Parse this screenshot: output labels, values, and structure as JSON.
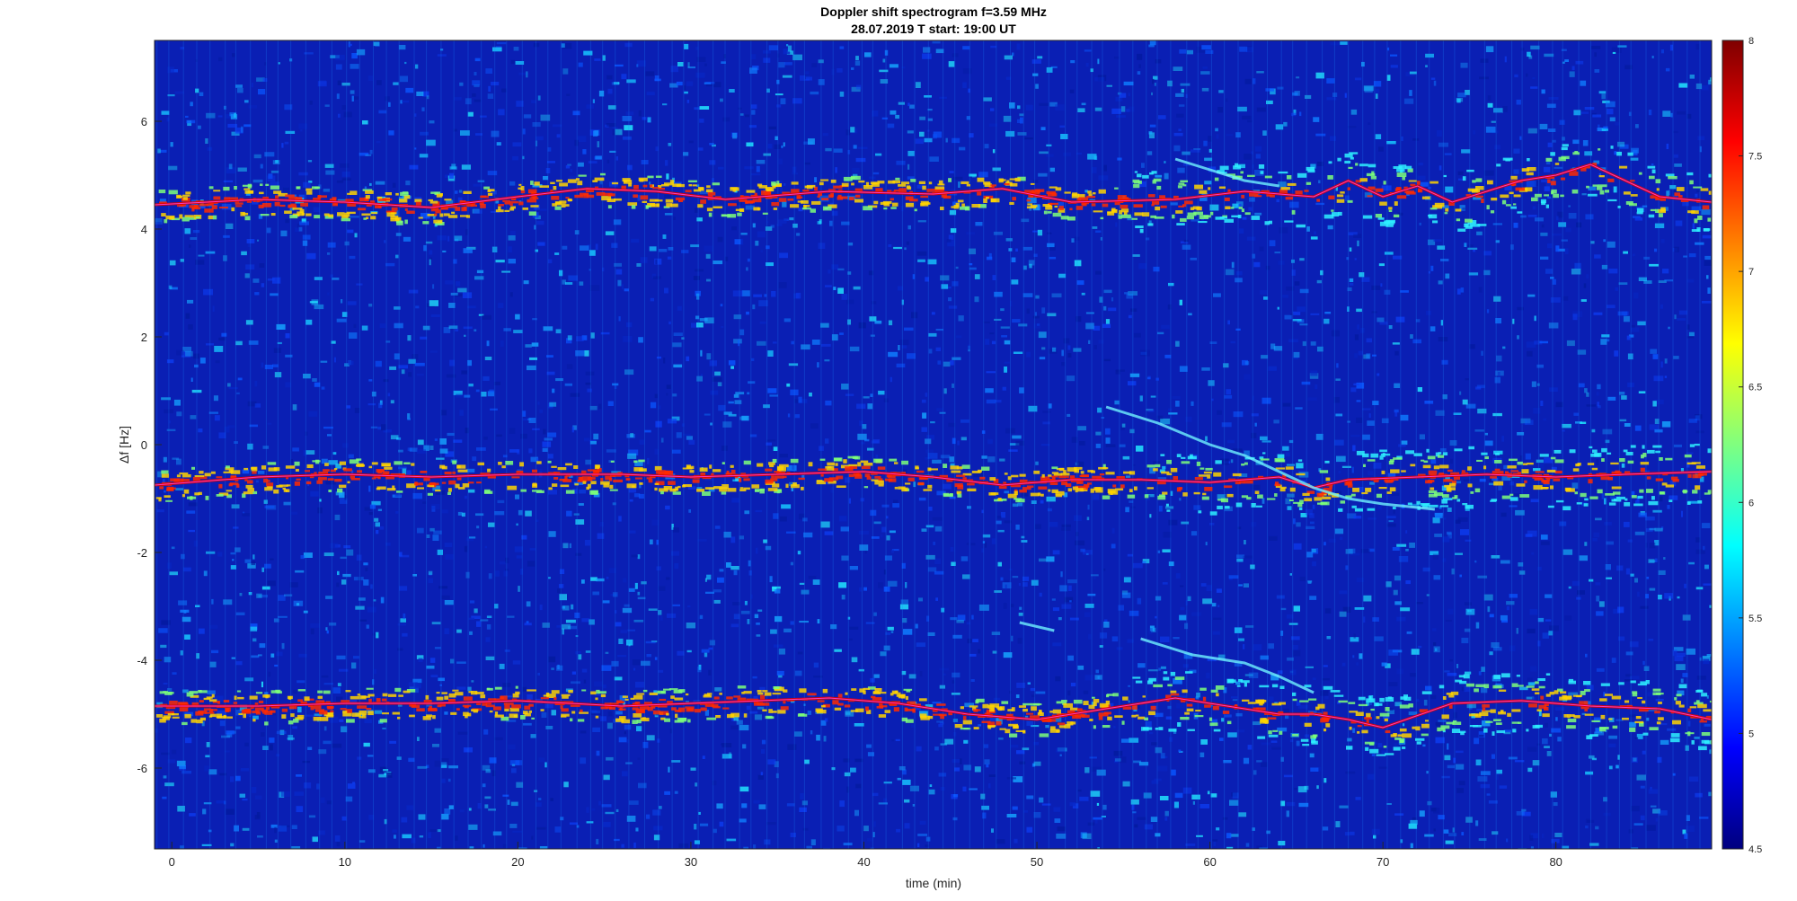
{
  "chart_data": {
    "type": "heatmap",
    "title": "Doppler shift spectrogram f=3.59 MHz",
    "subtitle": "28.07.2019    T start: 19:00 UT",
    "xlabel": "time (min)",
    "ylabel": "Δf [Hz]",
    "xlim": [
      -1,
      89
    ],
    "ylim": [
      -7.5,
      7.5
    ],
    "xticks": [
      0,
      10,
      20,
      30,
      40,
      50,
      60,
      70,
      80
    ],
    "yticks": [
      -6,
      -4,
      -2,
      0,
      2,
      4,
      6
    ],
    "colormap": "jet",
    "clim": [
      4.5,
      8
    ],
    "colorbar_ticks": [
      4.5,
      5,
      5.5,
      6,
      6.5,
      7,
      7.5,
      8
    ],
    "series": [
      {
        "x": [
          -1,
          5,
          10,
          15,
          20,
          24,
          28,
          32,
          38,
          44,
          48,
          52,
          58,
          62,
          66,
          68,
          70,
          72,
          74,
          76,
          78,
          80,
          82,
          84,
          86,
          89
        ],
        "y": [
          4.45,
          4.55,
          4.5,
          4.4,
          4.6,
          4.75,
          4.7,
          4.55,
          4.7,
          4.65,
          4.75,
          4.5,
          4.55,
          4.7,
          4.6,
          4.9,
          4.6,
          4.8,
          4.5,
          4.7,
          4.9,
          5.0,
          5.2,
          4.9,
          4.6,
          4.5
        ]
      },
      {
        "x": [
          -1,
          5,
          10,
          15,
          20,
          26,
          30,
          35,
          40,
          44,
          48,
          52,
          56,
          60,
          64,
          66,
          68,
          72,
          76,
          80,
          84,
          89
        ],
        "y": [
          -0.75,
          -0.6,
          -0.55,
          -0.6,
          -0.55,
          -0.55,
          -0.6,
          -0.55,
          -0.5,
          -0.6,
          -0.75,
          -0.65,
          -0.65,
          -0.7,
          -0.6,
          -0.8,
          -0.65,
          -0.6,
          -0.55,
          -0.6,
          -0.55,
          -0.5
        ]
      },
      {
        "x": [
          -1,
          5,
          10,
          15,
          20,
          26,
          30,
          34,
          38,
          42,
          46,
          50,
          54,
          58,
          60,
          62,
          64,
          66,
          68,
          70,
          74,
          78,
          82,
          86,
          89
        ],
        "y": [
          -4.85,
          -4.85,
          -4.8,
          -4.8,
          -4.75,
          -4.85,
          -4.8,
          -4.75,
          -4.7,
          -4.8,
          -5.0,
          -5.1,
          -4.9,
          -4.7,
          -4.8,
          -4.9,
          -5.0,
          -5.0,
          -5.1,
          -5.25,
          -4.8,
          -4.75,
          -4.85,
          -4.9,
          -5.1
        ]
      }
    ],
    "secondary_traces": [
      {
        "x": [
          54,
          57,
          60,
          62,
          64,
          66,
          68,
          70,
          73
        ],
        "y": [
          0.7,
          0.4,
          0.0,
          -0.2,
          -0.5,
          -0.8,
          -1.0,
          -1.1,
          -1.2
        ]
      },
      {
        "x": [
          49,
          51
        ],
        "y": [
          -3.3,
          -3.45
        ]
      },
      {
        "x": [
          56,
          59,
          62,
          64,
          66
        ],
        "y": [
          -3.6,
          -3.9,
          -4.05,
          -4.3,
          -4.6
        ]
      },
      {
        "x": [
          58,
          60,
          62,
          64
        ],
        "y": [
          5.3,
          5.1,
          4.9,
          4.8
        ]
      }
    ]
  }
}
